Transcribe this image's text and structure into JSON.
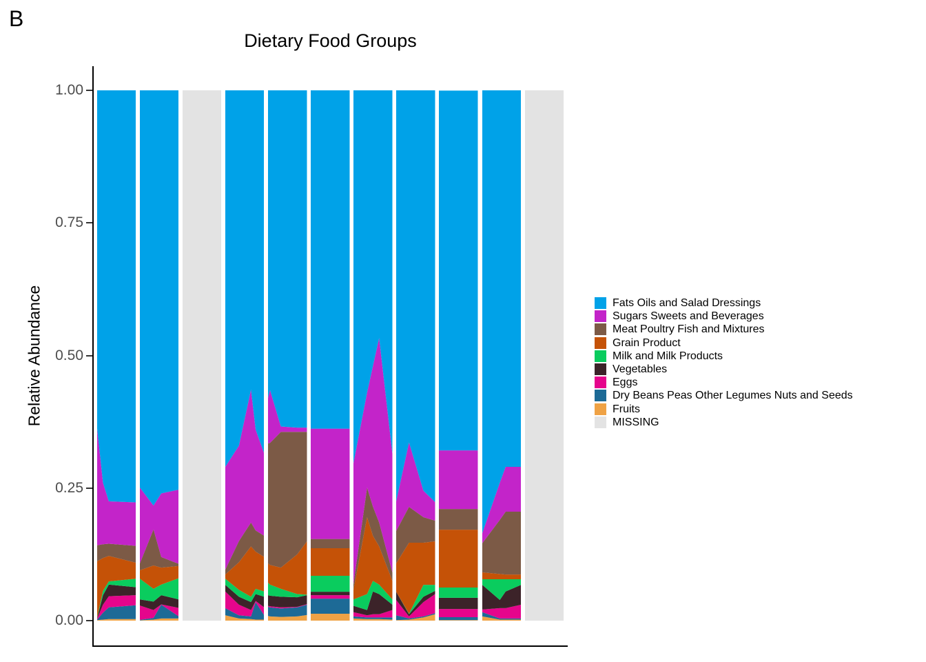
{
  "page": {
    "panel_label": "B",
    "background": "#FFFFFF"
  },
  "chart_data": {
    "type": "area",
    "variant": "stacked-relative-abundance-columns",
    "title": "Dietary Food Groups",
    "xlabel": "",
    "ylabel": "Relative Abundance",
    "ylim": [
      0,
      1
    ],
    "grid": false,
    "legend_position": "right",
    "axis_text_color": "#4D4D4D",
    "axis_line_color": "#000000",
    "yticks": [
      {
        "label": "1.00",
        "value": 1.0
      },
      {
        "label": "0.75",
        "value": 0.75
      },
      {
        "label": "0.50",
        "value": 0.5
      },
      {
        "label": "0.25",
        "value": 0.25
      },
      {
        "label": "0.00",
        "value": 0.0
      }
    ],
    "categories": [
      {
        "label": "Fats Oils and Salad Dressings",
        "color": "#00A2E8"
      },
      {
        "label": "Sugars Sweets and Beverages",
        "color": "#C324C9"
      },
      {
        "label": "Meat Poultry Fish and Mixtures",
        "color": "#7C5A46"
      },
      {
        "label": "Grain Product",
        "color": "#C55207"
      },
      {
        "label": "Milk and Milk Products",
        "color": "#0ACC5E"
      },
      {
        "label": "Vegetables",
        "color": "#3C2329"
      },
      {
        "label": "Eggs",
        "color": "#E5058C"
      },
      {
        "label": "Dry Beans Peas Other Legumes Nuts and Seeds",
        "color": "#1D6A96"
      },
      {
        "label": "Fruits",
        "color": "#EFA245"
      },
      {
        "label": "MISSING",
        "color": "#E3E3E3"
      }
    ],
    "stack_bottom_to_top": [
      "Fruits",
      "Dry Beans Peas Other Legumes Nuts and Seeds",
      "Eggs",
      "Vegetables",
      "Milk and Milk Products",
      "Grain Product",
      "Meat Poultry Fish and Mixtures",
      "Sugars Sweets and Beverages",
      "Fats Oils and Salad Dressings"
    ],
    "columns": [
      {
        "id": 1,
        "missing": false,
        "points": [
          {
            "x": 0.0,
            "v": [
              0.001,
              0.001,
              0.002,
              0.001,
              0.001,
              0.106,
              0.03,
              0.22,
              0.638
            ]
          },
          {
            "x": 0.15,
            "v": [
              0.002,
              0.013,
              0.015,
              0.018,
              0.008,
              0.062,
              0.026,
              0.116,
              0.74
            ]
          },
          {
            "x": 0.3,
            "v": [
              0.003,
              0.022,
              0.021,
              0.022,
              0.006,
              0.048,
              0.023,
              0.08,
              0.775
            ]
          },
          {
            "x": 1.0,
            "v": [
              0.003,
              0.026,
              0.019,
              0.015,
              0.016,
              0.03,
              0.032,
              0.082,
              0.777
            ]
          }
        ]
      },
      {
        "id": 2,
        "missing": false,
        "points": [
          {
            "x": 0.0,
            "v": [
              0.0005,
              0.001,
              0.027,
              0.0115,
              0.039,
              0.016,
              0.013,
              0.143,
              0.749
            ]
          },
          {
            "x": 0.35,
            "v": [
              0.002,
              0.003,
              0.015,
              0.016,
              0.024,
              0.044,
              0.068,
              0.045,
              0.783
            ]
          },
          {
            "x": 0.55,
            "v": [
              0.004,
              0.026,
              0.0005,
              0.0175,
              0.02,
              0.032,
              0.02,
              0.12,
              0.76
            ]
          },
          {
            "x": 1.0,
            "v": [
              0.004,
              0.004,
              0.016,
              0.016,
              0.04,
              0.023,
              0.004,
              0.14,
              0.753
            ]
          }
        ]
      },
      {
        "id": 3,
        "missing": true,
        "points": []
      },
      {
        "id": 4,
        "missing": false,
        "points": [
          {
            "x": 0.0,
            "v": [
              0.01,
              0.0135,
              0.0315,
              0.0125,
              0.0115,
              0.008,
              0.009,
              0.194,
              0.71
            ]
          },
          {
            "x": 0.35,
            "v": [
              0.004,
              0.006,
              0.02,
              0.015,
              0.013,
              0.052,
              0.04,
              0.18,
              0.67
            ]
          },
          {
            "x": 0.66,
            "v": [
              0.003,
              0.005,
              0.012,
              0.015,
              0.01,
              0.095,
              0.045,
              0.2506,
              0.5644
            ]
          },
          {
            "x": 0.78,
            "v": [
              0.002,
              0.033,
              0.002,
              0.013,
              0.01,
              0.07,
              0.04,
              0.19,
              0.64
            ]
          },
          {
            "x": 1.0,
            "v": [
              0.002,
              0.008,
              0.015,
              0.02,
              0.01,
              0.065,
              0.04,
              0.155,
              0.685
            ]
          }
        ]
      },
      {
        "id": 5,
        "missing": false,
        "points": [
          {
            "x": 0.0,
            "v": [
              0.009,
              0.017,
              0.002,
              0.02,
              0.0235,
              0.0365,
              0.226,
              0.086,
              0.58
            ]
          },
          {
            "x": 0.05,
            "v": [
              0.008,
              0.017,
              0.002,
              0.02,
              0.021,
              0.037,
              0.23,
              0.1,
              0.565
            ]
          },
          {
            "x": 0.33,
            "v": [
              0.007,
              0.016,
              0.002,
              0.02,
              0.015,
              0.04,
              0.256,
              0.01,
              0.634
            ]
          },
          {
            "x": 0.75,
            "v": [
              0.008,
              0.017,
              0.001,
              0.018,
              0.006,
              0.075,
              0.231,
              0.008,
              0.636
            ]
          },
          {
            "x": 1.0,
            "v": [
              0.0105,
              0.0195,
              0.001,
              0.017,
              0.001,
              0.1005,
              0.2065,
              0.008,
              0.636
            ]
          }
        ]
      },
      {
        "id": 6,
        "missing": false,
        "points": [
          {
            "x": 0.0,
            "v": [
              0.013,
              0.0285,
              0.0065,
              0.0065,
              0.03,
              0.052,
              0.0175,
              0.208,
              0.638
            ]
          },
          {
            "x": 1.0,
            "v": [
              0.013,
              0.0285,
              0.0065,
              0.0065,
              0.03,
              0.052,
              0.0175,
              0.208,
              0.638
            ]
          }
        ]
      },
      {
        "id": 7,
        "missing": false,
        "points": [
          {
            "x": 0.0,
            "v": [
              0.004,
              0.004,
              0.008,
              0.012,
              0.012,
              0.018,
              0.011,
              0.228,
              0.703
            ]
          },
          {
            "x": 0.35,
            "v": [
              0.003,
              0.003,
              0.004,
              0.01,
              0.03,
              0.145,
              0.056,
              0.179,
              0.57
            ]
          },
          {
            "x": 0.5,
            "v": [
              0.003,
              0.003,
              0.006,
              0.043,
              0.02,
              0.085,
              0.055,
              0.265,
              0.52
            ]
          },
          {
            "x": 0.66,
            "v": [
              0.003,
              0.003,
              0.006,
              0.038,
              0.018,
              0.072,
              0.045,
              0.348,
              0.467
            ]
          },
          {
            "x": 1.0,
            "v": [
              0.002,
              0.004,
              0.014,
              0.01,
              0.01,
              0.035,
              0.016,
              0.224,
              0.685
            ]
          }
        ]
      },
      {
        "id": 8,
        "missing": false,
        "points": [
          {
            "x": 0.0,
            "v": [
              0.001,
              0.009,
              0.029,
              0.0155,
              0.0,
              0.0535,
              0.061,
              0.056,
              0.775
            ]
          },
          {
            "x": 0.33,
            "v": [
              0.002,
              0.002,
              0.004,
              0.004,
              0.001,
              0.134,
              0.0675,
              0.1215,
              0.664
            ]
          },
          {
            "x": 0.7,
            "v": [
              0.006,
              0.002,
              0.027,
              0.01,
              0.0225,
              0.0795,
              0.048,
              0.05,
              0.755
            ]
          },
          {
            "x": 1.0,
            "v": [
              0.012,
              0.002,
              0.036,
              0.006,
              0.0115,
              0.082,
              0.039,
              0.035,
              0.7765
            ]
          }
        ]
      },
      {
        "id": 9,
        "missing": false,
        "points": [
          {
            "x": 0.0,
            "v": [
              0.001,
              0.0055,
              0.0155,
              0.021,
              0.0195,
              0.109,
              0.039,
              0.1105,
              0.6785
            ]
          },
          {
            "x": 1.0,
            "v": [
              0.001,
              0.0055,
              0.0155,
              0.021,
              0.0195,
              0.109,
              0.039,
              0.1105,
              0.6785
            ]
          }
        ]
      },
      {
        "id": 10,
        "missing": false,
        "points": [
          {
            "x": 0.0,
            "v": [
              0.008,
              0.008,
              0.005,
              0.0465,
              0.0105,
              0.013,
              0.055,
              0.019,
              0.835
            ]
          },
          {
            "x": 0.45,
            "v": [
              0.002,
              0.002,
              0.0195,
              0.0155,
              0.039,
              0.01,
              0.102,
              0.07,
              0.74
            ]
          },
          {
            "x": 0.6,
            "v": [
              0.002,
              0.002,
              0.0195,
              0.0315,
              0.023,
              0.009,
              0.1185,
              0.0845,
              0.71
            ]
          },
          {
            "x": 1.0,
            "v": [
              0.002,
              0.002,
              0.026,
              0.0375,
              0.0105,
              0.009,
              0.1185,
              0.0845,
              0.71
            ]
          }
        ]
      },
      {
        "id": 11,
        "missing": true,
        "points": []
      }
    ]
  }
}
